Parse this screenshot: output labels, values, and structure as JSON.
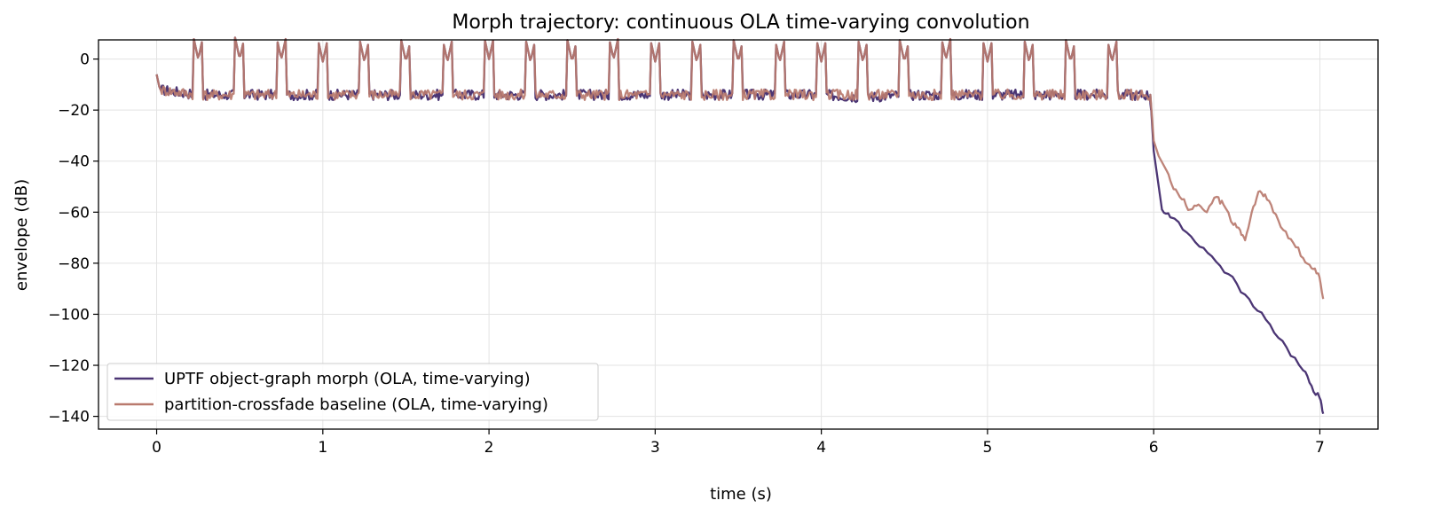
{
  "chart_data": {
    "type": "line",
    "title": "Morph trajectory: continuous OLA time-varying convolution",
    "xlabel": "time (s)",
    "ylabel": "envelope (dB)",
    "xlim": [
      -0.35,
      7.35
    ],
    "ylim": [
      -145,
      7.5
    ],
    "xticks": [
      0,
      1,
      2,
      3,
      4,
      5,
      6,
      7
    ],
    "yticks": [
      0,
      -20,
      -40,
      -60,
      -80,
      -100,
      -120,
      -140
    ],
    "grid": true,
    "legend_position": "lower-left",
    "series": [
      {
        "name": "UPTF object-graph morph (OLA, time-varying)",
        "color": "#4b3574",
        "x": [
          0.0,
          0.02,
          0.25,
          0.5,
          0.75,
          1.0,
          1.25,
          1.5,
          1.75,
          2.0,
          2.25,
          2.5,
          2.75,
          3.0,
          3.25,
          3.5,
          3.75,
          4.0,
          4.25,
          4.5,
          4.75,
          5.0,
          5.25,
          5.5,
          5.75,
          5.98,
          6.0,
          6.05,
          6.1,
          6.2,
          6.3,
          6.4,
          6.5,
          6.6,
          6.7,
          6.8,
          6.9,
          6.95,
          7.0,
          7.02
        ],
        "y": [
          -6,
          -12,
          -14,
          -14,
          -14,
          -14,
          -14,
          -14,
          -14,
          -14,
          -14,
          -14,
          -14,
          -14,
          -14,
          -14,
          -14,
          -14,
          -15,
          -14,
          -14,
          -14,
          -14,
          -14,
          -14,
          -14,
          -36,
          -59,
          -62,
          -68,
          -74,
          -81,
          -88,
          -97,
          -104,
          -113,
          -122,
          -128,
          -133,
          -139
        ]
      },
      {
        "name": "partition-crossfade baseline (OLA, time-varying)",
        "color": "#b97a6e",
        "x": [
          0.0,
          0.02,
          0.25,
          0.5,
          0.75,
          1.0,
          1.25,
          1.5,
          1.75,
          2.0,
          2.25,
          2.5,
          2.75,
          3.0,
          3.25,
          3.5,
          3.75,
          4.0,
          4.25,
          4.5,
          4.75,
          5.0,
          5.25,
          5.5,
          5.75,
          5.98,
          6.0,
          6.03,
          6.08,
          6.12,
          6.17,
          6.22,
          6.27,
          6.32,
          6.38,
          6.42,
          6.48,
          6.52,
          6.55,
          6.59,
          6.63,
          6.67,
          6.72,
          6.78,
          6.84,
          6.9,
          6.95,
          6.99,
          7.02
        ],
        "y": [
          -6,
          -12,
          -14,
          -14,
          -14,
          -14,
          -14,
          -14,
          -14,
          -14,
          -14,
          -14,
          -14,
          -14,
          -14,
          -14,
          -14,
          -14,
          -14,
          -14,
          -14,
          -14,
          -14,
          -14,
          -14,
          -14,
          -32,
          -38,
          -44,
          -51,
          -55,
          -59,
          -57,
          -60,
          -54,
          -57,
          -65,
          -67,
          -71,
          -60,
          -52,
          -53,
          -60,
          -67,
          -72,
          -78,
          -82,
          -84,
          -94
        ]
      }
    ],
    "spikes": {
      "times": [
        0.25,
        0.5,
        0.75,
        1.0,
        1.25,
        1.5,
        1.75,
        2.0,
        2.25,
        2.5,
        2.75,
        3.0,
        3.25,
        3.5,
        3.75,
        4.0,
        4.25,
        4.5,
        4.75,
        5.0,
        5.25,
        5.5,
        5.75
      ],
      "peaks": [
        0,
        0,
        0,
        -1,
        -1,
        -1,
        -1,
        0,
        -1,
        -1,
        0,
        -1,
        -1,
        -1,
        -1,
        -1,
        -1,
        -1,
        0,
        -1,
        -1,
        -1,
        -1
      ]
    }
  }
}
